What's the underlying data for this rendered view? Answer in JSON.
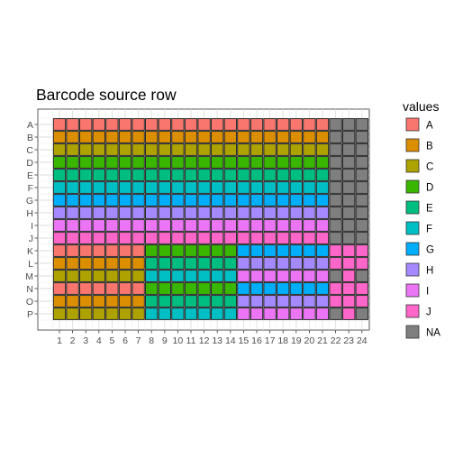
{
  "chart_data": {
    "type": "heatmap",
    "title": "Barcode source row",
    "xlabel": "",
    "ylabel": "",
    "x_categories": [
      "1",
      "2",
      "3",
      "4",
      "5",
      "6",
      "7",
      "8",
      "9",
      "10",
      "11",
      "12",
      "13",
      "14",
      "15",
      "16",
      "17",
      "18",
      "19",
      "20",
      "21",
      "22",
      "23",
      "24"
    ],
    "y_categories": [
      "A",
      "B",
      "C",
      "D",
      "E",
      "F",
      "G",
      "H",
      "I",
      "J",
      "K",
      "L",
      "M",
      "N",
      "O",
      "P"
    ],
    "grid": true,
    "legend_position": "right",
    "legend": {
      "title": "values",
      "entries": [
        {
          "label": "A",
          "color": "#F8766D"
        },
        {
          "label": "B",
          "color": "#DB8E00"
        },
        {
          "label": "C",
          "color": "#AEA200"
        },
        {
          "label": "D",
          "color": "#39B600"
        },
        {
          "label": "E",
          "color": "#00BD80"
        },
        {
          "label": "F",
          "color": "#00BFC4"
        },
        {
          "label": "G",
          "color": "#00AEFA"
        },
        {
          "label": "H",
          "color": "#A58AFF"
        },
        {
          "label": "I",
          "color": "#EB75F5"
        },
        {
          "label": "J",
          "color": "#FF66C9"
        },
        {
          "label": "NA",
          "color": "#7F7F7F"
        }
      ]
    },
    "rows": [
      "AAAAAAAAAAAAAAAAAAAAANNN",
      "BBBBBBBBBBBBBBBBBBBBBNNN",
      "CCCCCCCCCCCCCCCCCCCCCNNN",
      "DDDDDDDDDDDDDDDDDDDDDNNN",
      "EEEEEEEEEEEEEEEEEEEEENNN",
      "FFFFFFFFFFFFFFFFFFFFFNNN",
      "GGGGGGGGGGGGGGGGGGGGGNNN",
      "HHHHHHHHHHHHHHHHHHHHHNNN",
      "IIIIIIIIIIIIIIIIIIIIINNN",
      "JJJJJJJJJJJJJJJJJJJJJNNN",
      "AAAAAAADDDDDDDGGGGGGGJJJ",
      "BBBBBBBEEEEEEEHHHHHHHJJJ",
      "CCCCCCCFFFFFFFIIIIIIINJN",
      "AAAAAAADDDDDDDGGGGGGGJJJ",
      "BBBBBBBEEEEEEEHHHHHHHJJJ",
      "CCCCCCCFFFFFFFIIIIIIINJN"
    ]
  }
}
